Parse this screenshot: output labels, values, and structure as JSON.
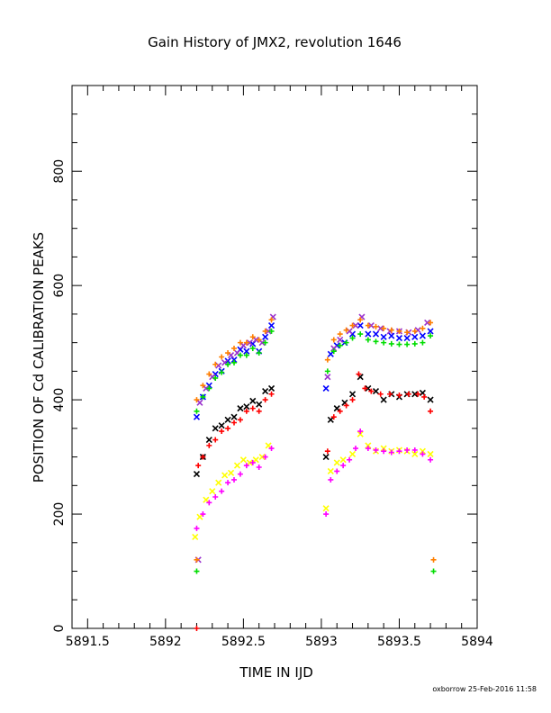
{
  "chart_data": {
    "type": "scatter",
    "title": "Gain History of JMX2, revolution 1646",
    "xlabel": "TIME IN IJD",
    "ylabel": "POSITION OF Cd CALIBRATION PEAKS",
    "xlim": [
      5891.4,
      5894
    ],
    "ylim": [
      0,
      950
    ],
    "x_ticks": [
      5891.5,
      5892,
      5892.5,
      5893,
      5893.5,
      5894
    ],
    "x_tick_labels": [
      "5891.5",
      "5892",
      "5892.5",
      "5893",
      "5893.5",
      "5894"
    ],
    "y_ticks": [
      0,
      200,
      400,
      600,
      800
    ],
    "y_tick_labels": [
      "0",
      "200",
      "400",
      "600",
      "800"
    ],
    "grid": false,
    "series": [
      {
        "color": "#0000ff",
        "marker": "x",
        "points": [
          [
            5892.2,
            370
          ],
          [
            5892.24,
            405
          ],
          [
            5892.28,
            425
          ],
          [
            5892.32,
            445
          ],
          [
            5892.36,
            450
          ],
          [
            5892.4,
            468
          ],
          [
            5892.44,
            470
          ],
          [
            5892.48,
            488
          ],
          [
            5892.52,
            485
          ],
          [
            5892.56,
            498
          ],
          [
            5892.6,
            485
          ],
          [
            5892.64,
            510
          ],
          [
            5892.68,
            530
          ],
          [
            5893.03,
            420
          ],
          [
            5893.06,
            480
          ],
          [
            5893.1,
            495
          ],
          [
            5893.15,
            500
          ],
          [
            5893.2,
            515
          ],
          [
            5893.25,
            530
          ],
          [
            5893.3,
            515
          ],
          [
            5893.35,
            515
          ],
          [
            5893.4,
            510
          ],
          [
            5893.45,
            512
          ],
          [
            5893.5,
            508
          ],
          [
            5893.55,
            508
          ],
          [
            5893.6,
            510
          ],
          [
            5893.65,
            512
          ],
          [
            5893.7,
            520
          ]
        ]
      },
      {
        "color": "#9a32cd",
        "marker": "x",
        "points": [
          [
            5892.22,
            395
          ],
          [
            5892.26,
            420
          ],
          [
            5892.3,
            440
          ],
          [
            5892.34,
            460
          ],
          [
            5892.38,
            465
          ],
          [
            5892.42,
            478
          ],
          [
            5892.46,
            482
          ],
          [
            5892.5,
            495
          ],
          [
            5892.54,
            500
          ],
          [
            5892.58,
            505
          ],
          [
            5892.62,
            500
          ],
          [
            5892.66,
            520
          ],
          [
            5892.69,
            545
          ],
          [
            5893.04,
            440
          ],
          [
            5893.08,
            490
          ],
          [
            5893.12,
            505
          ],
          [
            5893.18,
            520
          ],
          [
            5893.22,
            530
          ],
          [
            5893.26,
            545
          ],
          [
            5893.32,
            530
          ],
          [
            5893.38,
            525
          ],
          [
            5893.44,
            520
          ],
          [
            5893.5,
            520
          ],
          [
            5893.56,
            518
          ],
          [
            5893.62,
            522
          ],
          [
            5893.68,
            535
          ],
          [
            5892.21,
            120
          ]
        ]
      },
      {
        "color": "#ff7f00",
        "marker": "+",
        "points": [
          [
            5892.2,
            400
          ],
          [
            5892.24,
            425
          ],
          [
            5892.28,
            445
          ],
          [
            5892.32,
            462
          ],
          [
            5892.36,
            475
          ],
          [
            5892.4,
            482
          ],
          [
            5892.44,
            490
          ],
          [
            5892.48,
            500
          ],
          [
            5892.52,
            500
          ],
          [
            5892.56,
            510
          ],
          [
            5892.6,
            505
          ],
          [
            5892.64,
            520
          ],
          [
            5892.68,
            540
          ],
          [
            5893.04,
            470
          ],
          [
            5893.08,
            505
          ],
          [
            5893.12,
            515
          ],
          [
            5893.16,
            522
          ],
          [
            5893.2,
            530
          ],
          [
            5893.25,
            540
          ],
          [
            5893.3,
            530
          ],
          [
            5893.35,
            528
          ],
          [
            5893.4,
            525
          ],
          [
            5893.45,
            522
          ],
          [
            5893.5,
            520
          ],
          [
            5893.55,
            518
          ],
          [
            5893.6,
            520
          ],
          [
            5893.65,
            525
          ],
          [
            5893.7,
            535
          ],
          [
            5892.2,
            120
          ],
          [
            5893.72,
            120
          ]
        ]
      },
      {
        "color": "#00dd00",
        "marker": "+",
        "points": [
          [
            5892.2,
            380
          ],
          [
            5892.24,
            405
          ],
          [
            5892.28,
            420
          ],
          [
            5892.32,
            438
          ],
          [
            5892.36,
            448
          ],
          [
            5892.4,
            462
          ],
          [
            5892.44,
            465
          ],
          [
            5892.48,
            478
          ],
          [
            5892.52,
            478
          ],
          [
            5892.56,
            490
          ],
          [
            5892.6,
            482
          ],
          [
            5892.64,
            500
          ],
          [
            5892.68,
            520
          ],
          [
            5893.04,
            450
          ],
          [
            5893.08,
            485
          ],
          [
            5893.12,
            495
          ],
          [
            5893.16,
            500
          ],
          [
            5893.2,
            508
          ],
          [
            5893.25,
            515
          ],
          [
            5893.3,
            505
          ],
          [
            5893.35,
            502
          ],
          [
            5893.4,
            500
          ],
          [
            5893.45,
            498
          ],
          [
            5893.5,
            497
          ],
          [
            5893.55,
            497
          ],
          [
            5893.6,
            498
          ],
          [
            5893.65,
            500
          ],
          [
            5893.7,
            512
          ],
          [
            5892.2,
            100
          ],
          [
            5893.72,
            100
          ]
        ]
      },
      {
        "color": "#000000",
        "marker": "x",
        "points": [
          [
            5892.2,
            270
          ],
          [
            5892.24,
            300
          ],
          [
            5892.28,
            330
          ],
          [
            5892.32,
            350
          ],
          [
            5892.36,
            355
          ],
          [
            5892.4,
            365
          ],
          [
            5892.44,
            370
          ],
          [
            5892.48,
            385
          ],
          [
            5892.52,
            388
          ],
          [
            5892.56,
            398
          ],
          [
            5892.6,
            392
          ],
          [
            5892.64,
            415
          ],
          [
            5892.68,
            420
          ],
          [
            5893.03,
            300
          ],
          [
            5893.06,
            365
          ],
          [
            5893.1,
            385
          ],
          [
            5893.15,
            395
          ],
          [
            5893.2,
            410
          ],
          [
            5893.25,
            440
          ],
          [
            5893.3,
            420
          ],
          [
            5893.35,
            415
          ],
          [
            5893.4,
            400
          ],
          [
            5893.45,
            410
          ],
          [
            5893.5,
            405
          ],
          [
            5893.55,
            410
          ],
          [
            5893.6,
            410
          ],
          [
            5893.65,
            412
          ],
          [
            5893.7,
            400
          ]
        ]
      },
      {
        "color": "#ff0000",
        "marker": "+",
        "points": [
          [
            5892.21,
            285
          ],
          [
            5892.24,
            300
          ],
          [
            5892.28,
            320
          ],
          [
            5892.32,
            330
          ],
          [
            5892.36,
            345
          ],
          [
            5892.4,
            350
          ],
          [
            5892.44,
            360
          ],
          [
            5892.48,
            365
          ],
          [
            5892.52,
            380
          ],
          [
            5892.56,
            385
          ],
          [
            5892.6,
            380
          ],
          [
            5892.64,
            400
          ],
          [
            5892.68,
            410
          ],
          [
            5893.04,
            310
          ],
          [
            5893.08,
            370
          ],
          [
            5893.12,
            380
          ],
          [
            5893.16,
            390
          ],
          [
            5893.2,
            400
          ],
          [
            5893.24,
            445
          ],
          [
            5893.28,
            420
          ],
          [
            5893.32,
            415
          ],
          [
            5893.38,
            410
          ],
          [
            5893.44,
            410
          ],
          [
            5893.5,
            408
          ],
          [
            5893.56,
            410
          ],
          [
            5893.62,
            410
          ],
          [
            5893.66,
            405
          ],
          [
            5893.7,
            380
          ],
          [
            5892.2,
            0
          ]
        ]
      },
      {
        "color": "#ffff00",
        "marker": "x",
        "points": [
          [
            5892.19,
            160
          ],
          [
            5892.22,
            195
          ],
          [
            5892.26,
            225
          ],
          [
            5892.3,
            240
          ],
          [
            5892.34,
            255
          ],
          [
            5892.38,
            268
          ],
          [
            5892.42,
            272
          ],
          [
            5892.46,
            285
          ],
          [
            5892.5,
            295
          ],
          [
            5892.54,
            290
          ],
          [
            5892.58,
            295
          ],
          [
            5892.62,
            300
          ],
          [
            5892.66,
            320
          ],
          [
            5893.03,
            210
          ],
          [
            5893.06,
            275
          ],
          [
            5893.1,
            290
          ],
          [
            5893.14,
            295
          ],
          [
            5893.2,
            305
          ],
          [
            5893.25,
            340
          ],
          [
            5893.3,
            320
          ],
          [
            5893.35,
            310
          ],
          [
            5893.4,
            315
          ],
          [
            5893.45,
            310
          ],
          [
            5893.5,
            312
          ],
          [
            5893.55,
            310
          ],
          [
            5893.6,
            305
          ],
          [
            5893.65,
            310
          ],
          [
            5893.7,
            305
          ]
        ]
      },
      {
        "color": "#ff00ff",
        "marker": "+",
        "points": [
          [
            5892.2,
            175
          ],
          [
            5892.24,
            200
          ],
          [
            5892.28,
            220
          ],
          [
            5892.32,
            230
          ],
          [
            5892.36,
            240
          ],
          [
            5892.4,
            255
          ],
          [
            5892.44,
            260
          ],
          [
            5892.48,
            270
          ],
          [
            5892.52,
            285
          ],
          [
            5892.56,
            290
          ],
          [
            5892.6,
            282
          ],
          [
            5892.64,
            300
          ],
          [
            5892.68,
            315
          ],
          [
            5893.03,
            200
          ],
          [
            5893.06,
            260
          ],
          [
            5893.1,
            275
          ],
          [
            5893.14,
            285
          ],
          [
            5893.18,
            295
          ],
          [
            5893.22,
            315
          ],
          [
            5893.25,
            345
          ],
          [
            5893.3,
            315
          ],
          [
            5893.35,
            312
          ],
          [
            5893.4,
            310
          ],
          [
            5893.45,
            308
          ],
          [
            5893.5,
            310
          ],
          [
            5893.55,
            312
          ],
          [
            5893.6,
            312
          ],
          [
            5893.65,
            305
          ],
          [
            5893.7,
            295
          ]
        ]
      }
    ]
  },
  "footer": "oxborrow 25-Feb-2016 11:58"
}
